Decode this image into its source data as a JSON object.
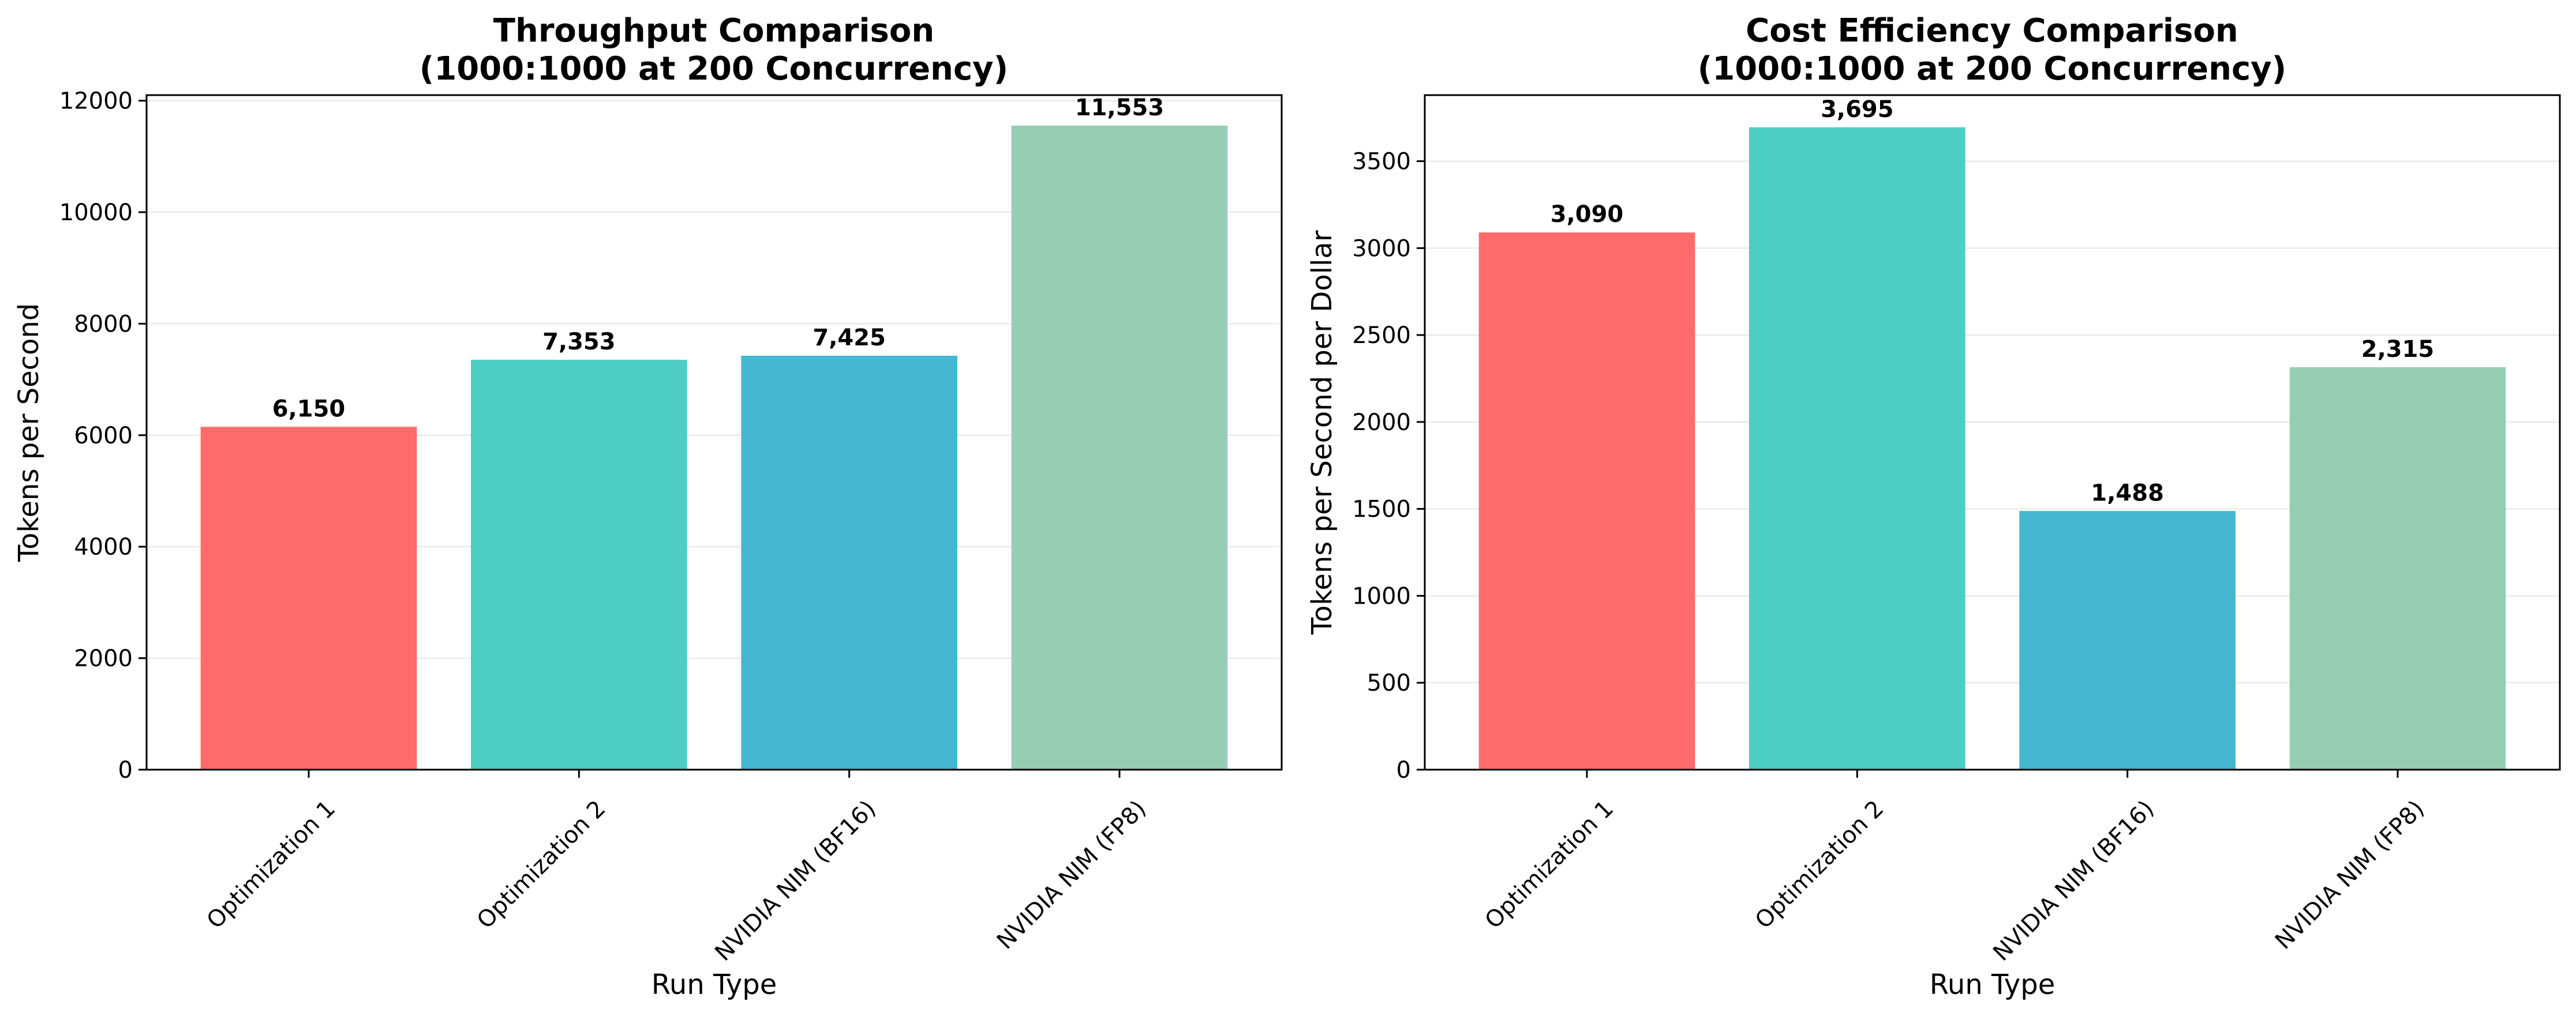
{
  "chart_data": [
    {
      "type": "bar",
      "title": "Throughput Comparison\n(1000:1000 at 200 Concurrency)",
      "xlabel": "Run Type",
      "ylabel": "Tokens per Second",
      "categories": [
        "Optimization 1",
        "Optimization 2",
        "NVIDIA NIM (BF16)",
        "NVIDIA NIM (FP8)"
      ],
      "values": [
        6150,
        7353,
        7425,
        11553
      ],
      "data_labels": [
        "6,150",
        "7,353",
        "7,425",
        "11,553"
      ],
      "ylim": [
        0,
        12100
      ],
      "yticks": [
        0,
        2000,
        4000,
        6000,
        8000,
        10000,
        12000
      ],
      "ytick_labels": [
        "0",
        "2000",
        "4000",
        "6000",
        "8000",
        "10000",
        "12000"
      ],
      "colors": [
        "#ff6b6b",
        "#4ecdc4",
        "#45b7d1",
        "#96ceb4"
      ],
      "grid": "y",
      "legend": "none"
    },
    {
      "type": "bar",
      "title": "Cost Efficiency Comparison\n(1000:1000 at 200 Concurrency)",
      "xlabel": "Run Type",
      "ylabel": "Tokens per Second per Dollar",
      "categories": [
        "Optimization 1",
        "Optimization 2",
        "NVIDIA NIM (BF16)",
        "NVIDIA NIM (FP8)"
      ],
      "values": [
        3090,
        3695,
        1488,
        2315
      ],
      "data_labels": [
        "3,090",
        "3,695",
        "1,488",
        "2,315"
      ],
      "ylim": [
        0,
        3880
      ],
      "yticks": [
        0,
        500,
        1000,
        1500,
        2000,
        2500,
        3000,
        3500
      ],
      "ytick_labels": [
        "0",
        "500",
        "1000",
        "1500",
        "2000",
        "2500",
        "3000",
        "3500"
      ],
      "colors": [
        "#ff6b6b",
        "#4ecdc4",
        "#45b7d1",
        "#96ceb4"
      ],
      "grid": "y",
      "legend": "none"
    }
  ]
}
